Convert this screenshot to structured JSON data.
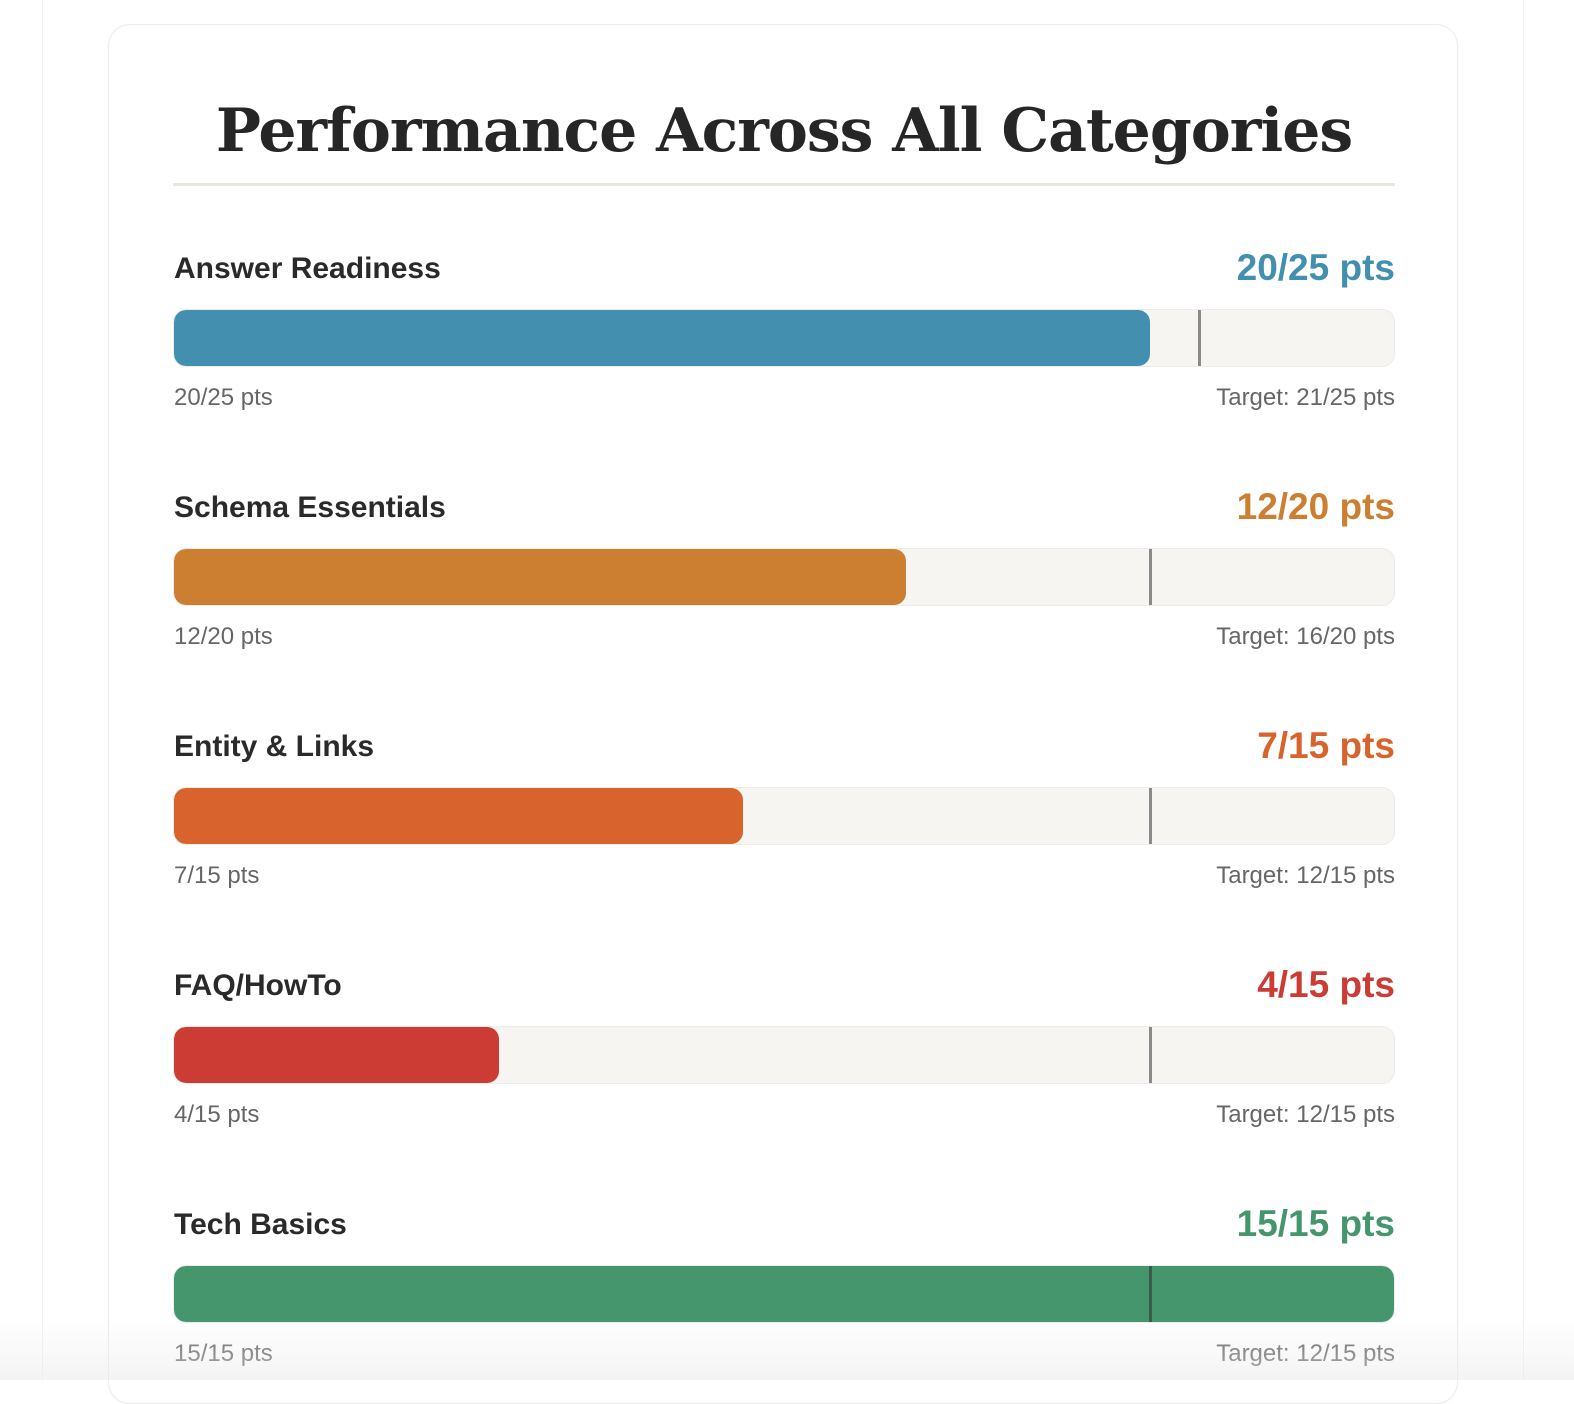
{
  "title": "Performance Across All Categories",
  "colors": {
    "blue": "#428fb0",
    "orange": "#cc7e31",
    "deep_orange": "#d9632c",
    "red": "#cc3b34",
    "green": "#45956d"
  },
  "categories": [
    {
      "name": "Answer Readiness",
      "score_label": "20/25 pts",
      "current_label": "20/25 pts",
      "target_label": "Target: 21/25 pts",
      "score": 20,
      "max": 25,
      "target": 21,
      "color": "#428fb0"
    },
    {
      "name": "Schema Essentials",
      "score_label": "12/20 pts",
      "current_label": "12/20 pts",
      "target_label": "Target: 16/20 pts",
      "score": 12,
      "max": 20,
      "target": 16,
      "color": "#cc7e31"
    },
    {
      "name": "Entity & Links",
      "score_label": "7/15 pts",
      "current_label": "7/15 pts",
      "target_label": "Target: 12/15 pts",
      "score": 7,
      "max": 15,
      "target": 12,
      "color": "#d9632c"
    },
    {
      "name": "FAQ/HowTo",
      "score_label": "4/15 pts",
      "current_label": "4/15 pts",
      "target_label": "Target: 12/15 pts",
      "score": 4,
      "max": 15,
      "target": 12,
      "color": "#cc3b34"
    },
    {
      "name": "Tech Basics",
      "score_label": "15/15 pts",
      "current_label": "15/15 pts",
      "target_label": "Target: 12/15 pts",
      "score": 15,
      "max": 15,
      "target": 12,
      "color": "#45956d"
    }
  ]
}
